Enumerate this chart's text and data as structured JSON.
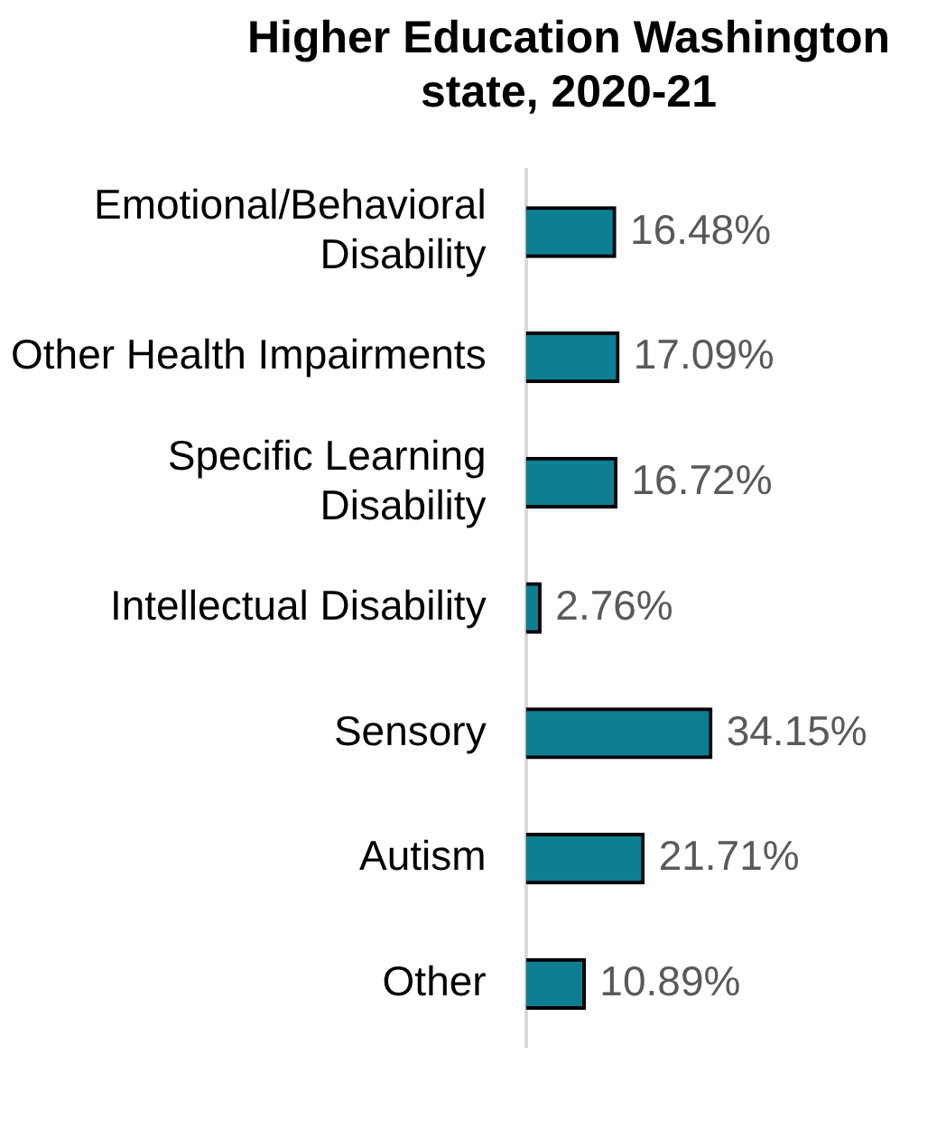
{
  "chart_data": {
    "type": "bar",
    "orientation": "horizontal",
    "title": "Higher Education Washington state, 2020-21",
    "categories": [
      "Emotional/Behavioral Disability",
      "Other Health Impairments",
      "Specific Learning Disability",
      "Intellectual Disability",
      "Sensory",
      "Autism",
      "Other"
    ],
    "values": [
      16.48,
      17.09,
      16.72,
      2.76,
      34.15,
      21.71,
      10.89
    ],
    "value_labels": [
      "16.48%",
      "17.09%",
      "16.72%",
      "2.76%",
      "34.15%",
      "21.71%",
      "10.89%"
    ],
    "color": "#0e7f93",
    "tick_labels": "y",
    "legend": false
  }
}
